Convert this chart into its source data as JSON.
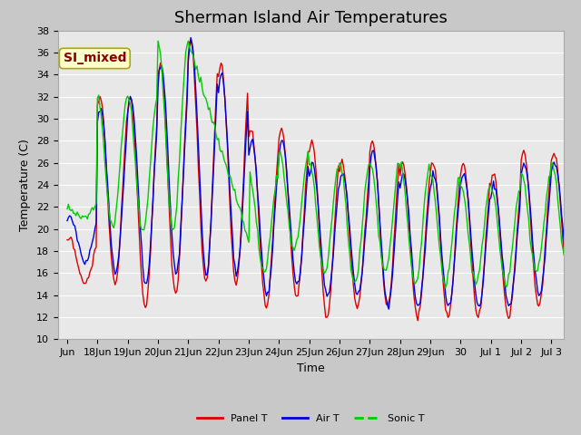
{
  "title": "Sherman Island Air Temperatures",
  "xlabel": "Time",
  "ylabel": "Temperature (C)",
  "ylim": [
    10,
    38
  ],
  "yticks": [
    10,
    12,
    14,
    16,
    18,
    20,
    22,
    24,
    26,
    28,
    30,
    32,
    34,
    36,
    38
  ],
  "fig_bg_color": "#c8c8c8",
  "plot_bg_color": "#e8e8e8",
  "line_colors": {
    "panel": "#dd0000",
    "air": "#0000dd",
    "sonic": "#00cc00"
  },
  "legend_label_panel": "Panel T",
  "legend_label_air": "Air T",
  "legend_label_sonic": "Sonic T",
  "watermark_text": "SI_mixed",
  "watermark_color": "#8b0000",
  "watermark_bg": "#ffffcc",
  "xtick_labels": [
    "Jun",
    "18Jun",
    "19Jun",
    "20Jun",
    "21Jun",
    "22Jun",
    "23Jun",
    "24Jun",
    "25Jun",
    "26Jun",
    "27Jun",
    "28Jun",
    "29Jun",
    "30",
    "Jul 1",
    "Jul 2",
    "Jul 3"
  ],
  "title_fontsize": 13,
  "axis_fontsize": 9,
  "tick_fontsize": 8,
  "linewidth": 1.0,
  "grid_color": "#ffffff",
  "spine_color": "#aaaaaa"
}
